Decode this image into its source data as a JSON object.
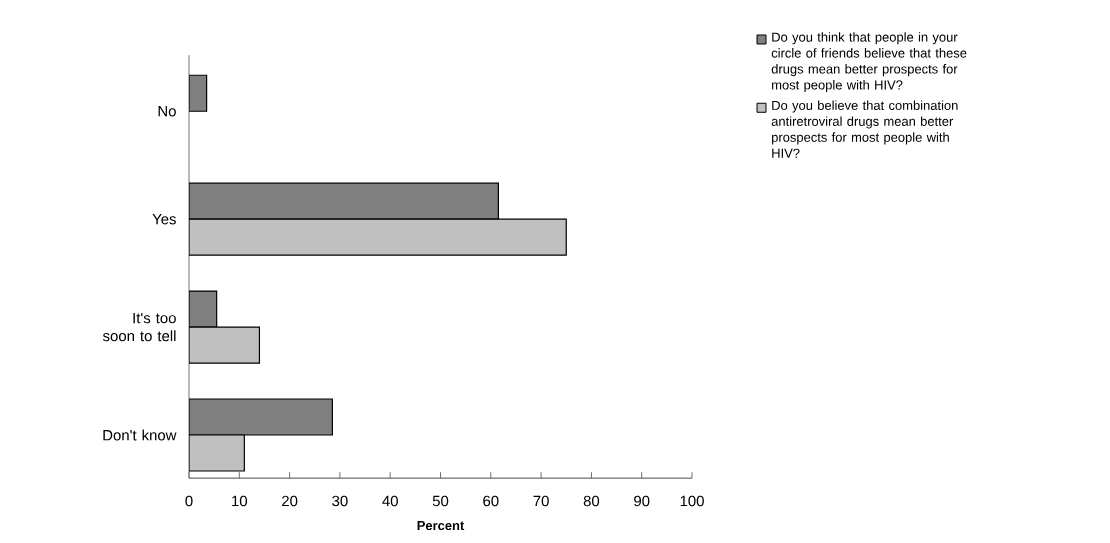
{
  "chart_data": {
    "type": "bar",
    "orientation": "horizontal",
    "categories": [
      "No",
      "Yes",
      "It's too soon to tell",
      "Don't know"
    ],
    "series": [
      {
        "name": "Do you think that people in your circle of friends believe that these drugs mean better prospects for most people with HIV?",
        "color": "#808080",
        "values": [
          3.5,
          61.5,
          5.5,
          28.5
        ]
      },
      {
        "name": "Do you believe that combination antiretroviral drugs mean better prospects for most people with HIV?",
        "color": "#c0c0c0",
        "values": [
          null,
          75,
          14,
          11
        ]
      }
    ],
    "xlabel": "Percent",
    "xlim": [
      0,
      100
    ],
    "xticks": [
      0,
      10,
      20,
      30,
      40,
      50,
      60,
      70,
      80,
      90,
      100
    ],
    "legend": "right"
  }
}
